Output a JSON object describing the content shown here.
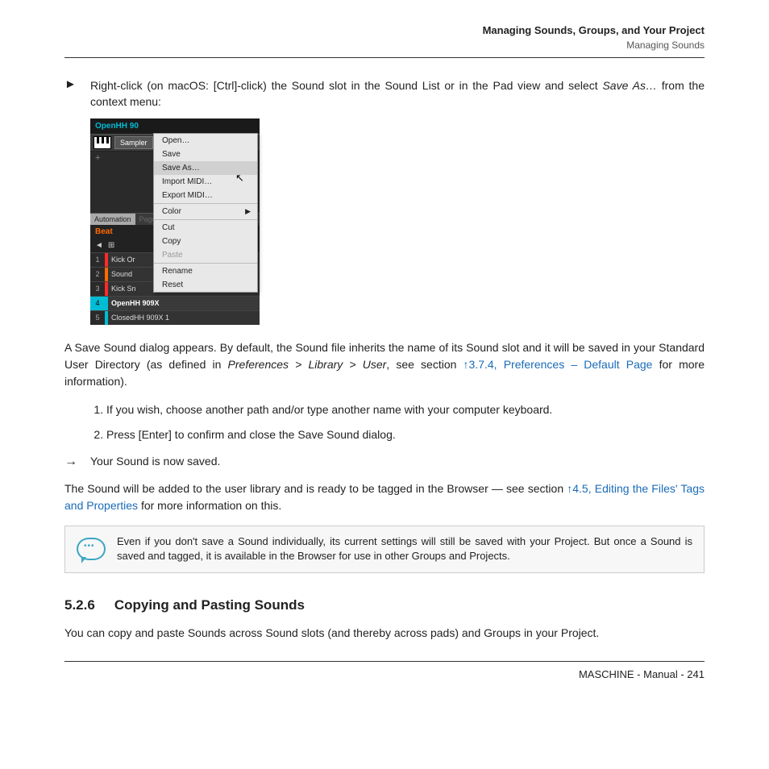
{
  "header": {
    "title": "Managing Sounds, Groups, and Your Project",
    "subtitle": "Managing Sounds"
  },
  "instruction": {
    "arrow": "►",
    "text_before": "Right-click (on macOS: [Ctrl]-click) the Sound slot in the Sound List or in the Pad view and select ",
    "italic": "Save As…",
    "text_after": " from the context menu:"
  },
  "screenshot": {
    "title": "OpenHH 90",
    "sampler_label": "Sampler",
    "automation_label": "Automation",
    "pages_label": "Pages",
    "beat_label": "Beat",
    "slots": [
      {
        "num": "1",
        "color": "#ff2a2a",
        "name": "Kick Or",
        "selected": false
      },
      {
        "num": "2",
        "color": "#ff6a00",
        "name": "Sound",
        "selected": false
      },
      {
        "num": "3",
        "color": "#ff2a2a",
        "name": "Kick Sn",
        "selected": false
      },
      {
        "num": "4",
        "color": "#00bcd4",
        "name": "OpenHH 909X",
        "selected": true
      },
      {
        "num": "5",
        "color": "#00bcd4",
        "name": "ClosedHH 909X 1",
        "selected": false
      }
    ],
    "context_menu": [
      {
        "label": "Open…",
        "type": "item"
      },
      {
        "label": "Save",
        "type": "item"
      },
      {
        "label": "Save As…",
        "type": "highlight"
      },
      {
        "label": "Import MIDI…",
        "type": "item"
      },
      {
        "label": "Export MIDI…",
        "type": "item"
      },
      {
        "type": "sep"
      },
      {
        "label": "Color",
        "type": "submenu"
      },
      {
        "type": "sep"
      },
      {
        "label": "Cut",
        "type": "item"
      },
      {
        "label": "Copy",
        "type": "item"
      },
      {
        "label": "Paste",
        "type": "disabled"
      },
      {
        "type": "sep"
      },
      {
        "label": "Rename",
        "type": "item"
      },
      {
        "label": "Reset",
        "type": "item"
      }
    ]
  },
  "para1": {
    "before": "A Save Sound dialog appears. By default, the Sound file inherits the name of its Sound slot and it will be saved in your Standard User Directory (as defined in ",
    "italic1": "Preferences > Library > User",
    "mid": ", see section ",
    "link": "↑3.7.4, Preferences – Default Page",
    "after": " for more information)."
  },
  "steps": [
    "If you wish, choose another path and/or type another name with your computer keyboard.",
    "Press [Enter] to confirm and close the Save Sound dialog."
  ],
  "result": {
    "arrow": "→",
    "text": "Your Sound is now saved."
  },
  "para2": {
    "before": "The Sound will be added to the user library and is ready to be tagged in the Browser — see section ",
    "link": "↑4.5, Editing the Files' Tags and Properties",
    "after": " for more information on this."
  },
  "callout": "Even if you don't save a Sound individually, its current settings will still be saved with your Project. But once a Sound is saved and tagged, it is available in the Browser for use in other Groups and Projects.",
  "section": {
    "number": "5.2.6",
    "title": "Copying and Pasting Sounds"
  },
  "para3": "You can copy and paste Sounds across Sound slots (and thereby across pads) and Groups in your Project.",
  "footer": "MASCHINE - Manual - 241"
}
